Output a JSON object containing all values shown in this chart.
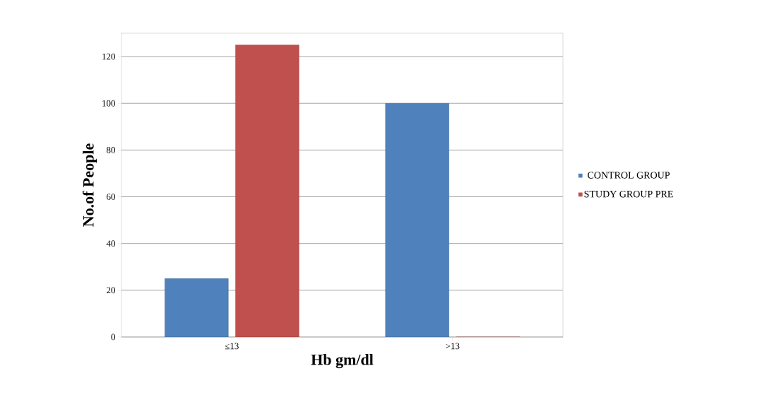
{
  "chart_data": {
    "type": "bar",
    "xlabel": "Hb gm/dl",
    "ylabel": "No.of People",
    "categories": [
      "≤13",
      ">13"
    ],
    "series": [
      {
        "name": "CONTROL GROUP",
        "color": "#4f81bd",
        "values": [
          25,
          100
        ]
      },
      {
        "name": "STUDY GROUP PRE",
        "color": "#c0504d",
        "values": [
          125,
          0
        ]
      }
    ],
    "ylim": [
      0,
      130
    ],
    "yticks": [
      0,
      20,
      40,
      60,
      80,
      100,
      120
    ],
    "grid": "y",
    "legend": "right"
  }
}
